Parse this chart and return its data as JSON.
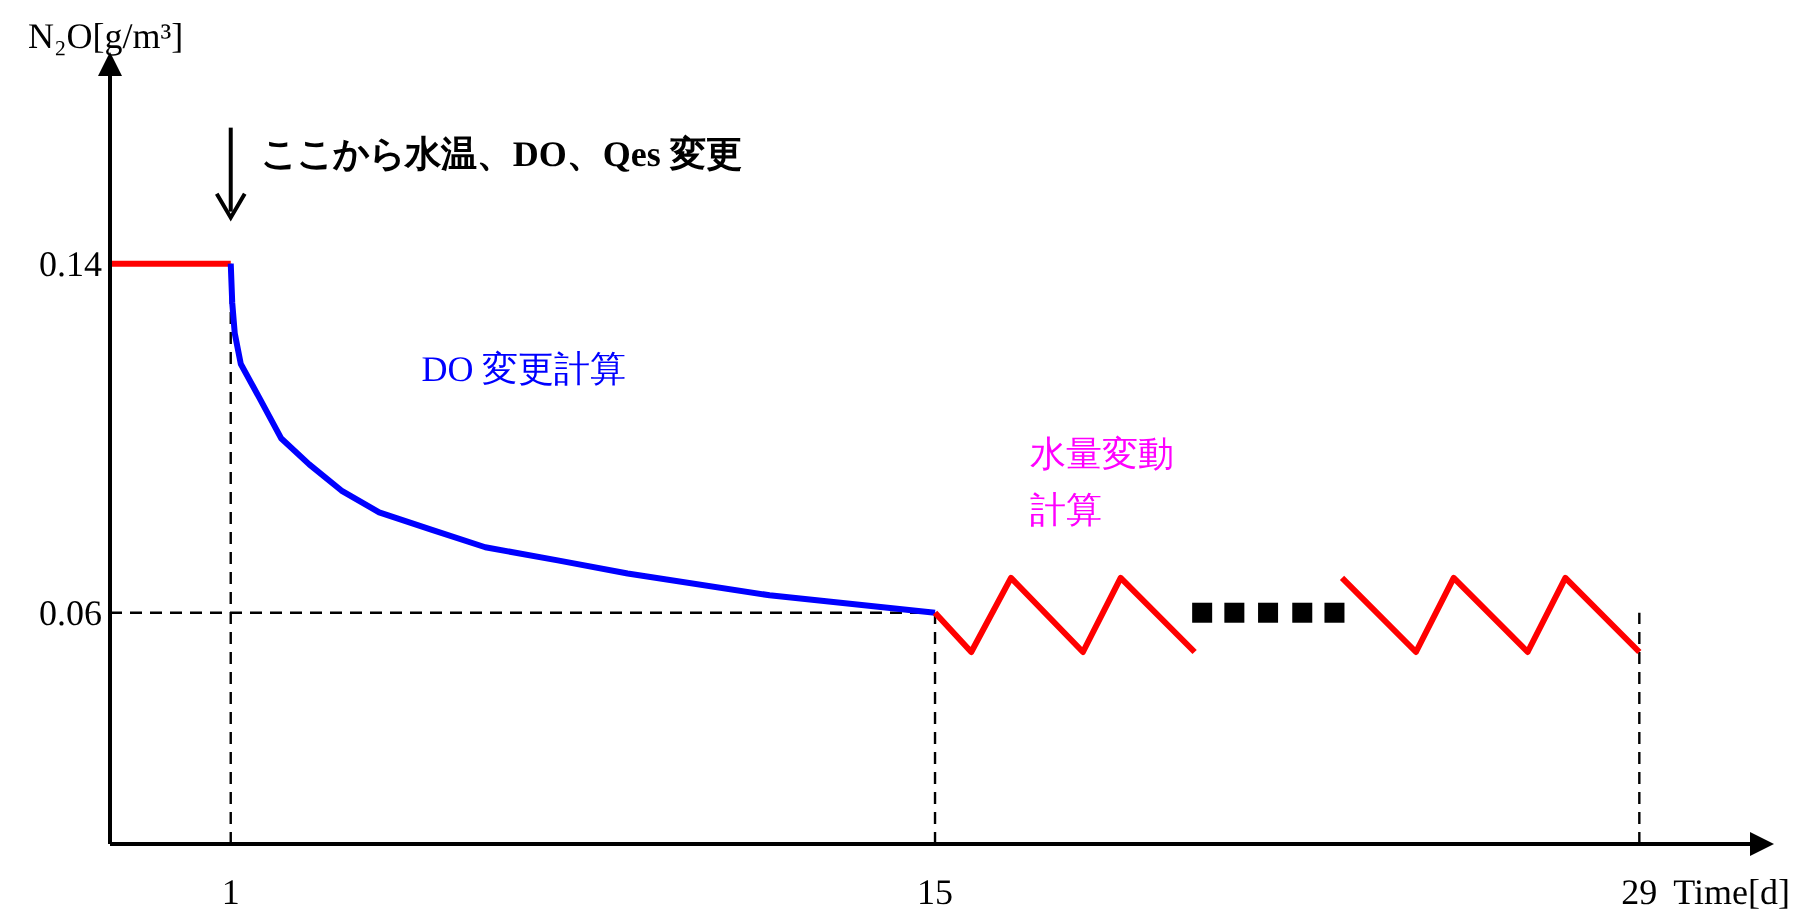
{
  "chart_data": {
    "type": "line",
    "xlabel": "Time[d]",
    "ylabel": "N₂O[g/m³]",
    "xlim": [
      -1.4,
      31.2
    ],
    "ylim": [
      0.007,
      0.183
    ],
    "xticks": [
      1,
      15,
      29
    ],
    "yticks": [
      0.06,
      0.14
    ],
    "grid": false,
    "series": [
      {
        "color": "#ff0000",
        "x": [
          -1.4,
          1
        ],
        "values": [
          0.14,
          0.14
        ]
      },
      {
        "name": "DO 変更計算",
        "color": "#0000ff",
        "x": [
          1,
          1.03,
          1.08,
          1.2,
          1.58,
          2.0,
          2.56,
          3.2,
          3.95,
          5.0,
          6.06,
          7.5,
          8.89,
          11.71,
          15
        ],
        "values": [
          0.14,
          0.131,
          0.124,
          0.117,
          0.109,
          0.1,
          0.094,
          0.088,
          0.083,
          0.079,
          0.075,
          0.072,
          0.069,
          0.064,
          0.06
        ]
      },
      {
        "color": "#ff0000",
        "x": [
          15,
          15.72,
          16.51,
          17.94,
          18.69,
          20.16,
          21.6,
          23.09,
          24.56,
          25.31,
          26.78,
          27.53,
          29
        ],
        "values": [
          0.06,
          0.051,
          0.068,
          0.051,
          0.068,
          0.051,
          null,
          0.068,
          0.051,
          0.068,
          0.051,
          0.068,
          0.051
        ]
      },
      {
        "type": "scatter",
        "marker": "square",
        "color": "#000000",
        "x": [
          20.31,
          20.95,
          21.62,
          22.3,
          22.94
        ],
        "values": [
          0.06,
          0.06,
          0.06,
          0.06,
          0.06
        ]
      }
    ],
    "ref_lines": [
      {
        "axis": "x",
        "value": 1,
        "color": "#000000",
        "line_style": "dashed"
      },
      {
        "axis": "x",
        "value": 15,
        "color": "#000000",
        "line_style": "dashed"
      },
      {
        "axis": "x",
        "value": 29,
        "color": "#000000",
        "line_style": "dashed"
      },
      {
        "axis": "y",
        "value": 0.06,
        "color": "#000000",
        "line_style": "dashed"
      }
    ],
    "annotations": [
      {
        "text": "ここから水温、DO、Qes 変更",
        "x": 1,
        "y": 0.14
      },
      "水量変動計算"
    ]
  }
}
